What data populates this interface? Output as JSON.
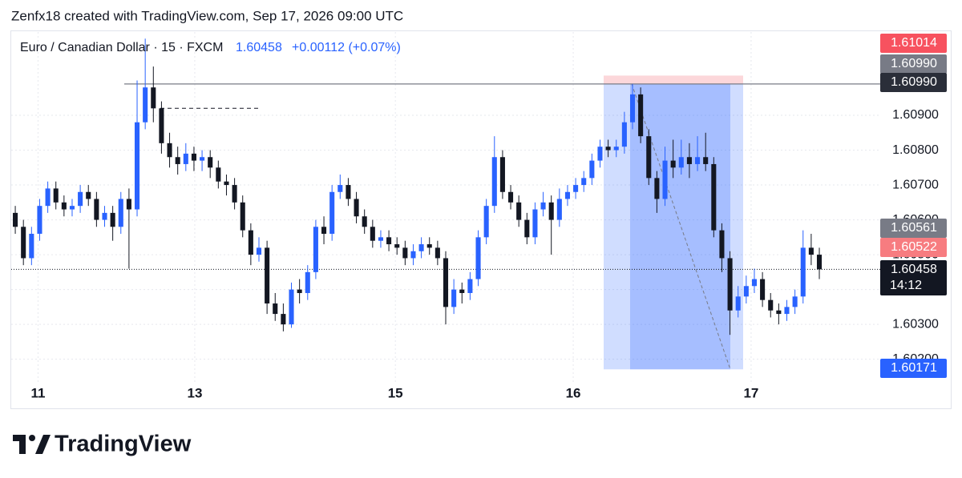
{
  "chart_data": {
    "type": "candlestick",
    "header": "Zenfx18 created with TradingView.com, Sep 17, 2026 09:00 UTC",
    "symbol": "Euro / Canadian Dollar · 15 · FXCM",
    "last_price": "1.60458",
    "change": "+0.00112 (+0.07%)",
    "brand": "TradingView",
    "up_color": "#2962ff",
    "down_color": "#131722",
    "grid": true,
    "xlim": [
      0,
      107
    ],
    "xticks": [
      {
        "value": 3.3,
        "label": "11"
      },
      {
        "value": 22.6,
        "label": "13"
      },
      {
        "value": 47.3,
        "label": "15"
      },
      {
        "value": 69.2,
        "label": "16"
      },
      {
        "value": 91.1,
        "label": "17"
      }
    ],
    "ylim": [
      1.60128,
      1.61139
    ],
    "yticks": [
      {
        "value": 1.602,
        "label": "1.60200"
      },
      {
        "value": 1.603,
        "label": "1.60300"
      },
      {
        "value": 1.604,
        "label": "1.60400"
      },
      {
        "value": 1.605,
        "label": "1.60500"
      },
      {
        "value": 1.606,
        "label": "1.60600"
      },
      {
        "value": 1.607,
        "label": "1.60700"
      },
      {
        "value": 1.608,
        "label": "1.60800"
      },
      {
        "value": 1.609,
        "label": "1.60900"
      }
    ],
    "dashed_line": 1.6092,
    "price_labels": [
      {
        "value": 1.61014,
        "label": "1.61014",
        "color": "#f7525f"
      },
      {
        "value": 1.6099,
        "label": "1.60990",
        "color": "#787b86"
      },
      {
        "value": 1.6099,
        "label": "1.60990",
        "color": "#2a2e39"
      },
      {
        "value": 1.60561,
        "label": "1.60561",
        "color": "#787b86"
      },
      {
        "value": 1.60522,
        "label": "1.60522",
        "color": "#f77c80"
      },
      {
        "value": 1.60458,
        "label": "1.60458",
        "color": "#131722"
      },
      {
        "value": 1.60171,
        "label": "1.60171",
        "color": "#2962ff"
      }
    ],
    "countdown": "14:12",
    "open": [
      1.6062,
      1.6058,
      1.6049,
      1.6056,
      1.6064,
      1.6069,
      1.6065,
      1.6063,
      1.6064,
      1.6068,
      1.6066,
      1.606,
      1.6062,
      1.6058,
      1.6066,
      1.6063,
      1.6088,
      1.6098,
      1.6092,
      1.6082,
      1.6078,
      1.6076,
      1.6079,
      1.6077,
      1.6078,
      1.6075,
      1.6071,
      1.607,
      1.6065,
      1.6057,
      1.605,
      1.6052,
      1.6036,
      1.6033,
      1.603,
      1.604,
      1.6039,
      1.6045,
      1.6058,
      1.6056,
      1.6068,
      1.607,
      1.6066,
      1.6061,
      1.6058,
      1.6054,
      1.6055,
      1.6053,
      1.6052,
      1.6049,
      1.6051,
      1.6053,
      1.6052,
      1.6049,
      1.6035,
      1.604,
      1.6039,
      1.6043,
      1.6055,
      1.6064,
      1.6078,
      1.6068,
      1.6065,
      1.606,
      1.6055,
      1.6063,
      1.6065,
      1.606,
      1.6066,
      1.6068,
      1.607,
      1.6072,
      1.6077,
      1.6081,
      1.608,
      1.6081,
      1.6088,
      1.6096,
      1.6084,
      1.6072,
      1.6066,
      1.6077,
      1.6075,
      1.6078,
      1.6076,
      1.6078,
      1.6076,
      1.6057,
      1.6049,
      1.6034,
      1.6038,
      1.6041,
      1.6043,
      1.6037,
      1.6034,
      1.6033,
      1.6035,
      1.6038,
      1.6052,
      1.605
    ],
    "high": [
      1.6064,
      1.606,
      1.6058,
      1.6066,
      1.6071,
      1.6071,
      1.6067,
      1.6066,
      1.607,
      1.607,
      1.6068,
      1.6064,
      1.6064,
      1.6068,
      1.6069,
      1.61,
      1.6112,
      1.6104,
      1.6094,
      1.6085,
      1.6081,
      1.6082,
      1.6081,
      1.608,
      1.608,
      1.6077,
      1.6073,
      1.6072,
      1.6067,
      1.6059,
      1.6055,
      1.6054,
      1.6039,
      1.6036,
      1.6042,
      1.6043,
      1.6047,
      1.606,
      1.6061,
      1.607,
      1.6073,
      1.6072,
      1.6068,
      1.6063,
      1.606,
      1.6057,
      1.6057,
      1.6055,
      1.6054,
      1.6053,
      1.6055,
      1.6055,
      1.6054,
      1.6051,
      1.6043,
      1.6042,
      1.6045,
      1.6057,
      1.6066,
      1.6084,
      1.608,
      1.607,
      1.6067,
      1.6062,
      1.6065,
      1.6068,
      1.6067,
      1.6069,
      1.607,
      1.6072,
      1.6074,
      1.6079,
      1.6083,
      1.6083,
      1.6083,
      1.6091,
      1.6099,
      1.6098,
      1.6086,
      1.6074,
      1.6081,
      1.6083,
      1.6083,
      1.6082,
      1.6084,
      1.6085,
      1.6078,
      1.6059,
      1.6051,
      1.6041,
      1.6044,
      1.6046,
      1.6045,
      1.6039,
      1.6036,
      1.6037,
      1.604,
      1.6057,
      1.6056,
      1.6052
    ],
    "low": [
      1.6056,
      1.6047,
      1.6047,
      1.6054,
      1.6062,
      1.6063,
      1.6061,
      1.6061,
      1.6062,
      1.6064,
      1.6058,
      1.6058,
      1.6054,
      1.6056,
      1.6046,
      1.6061,
      1.6086,
      1.6088,
      1.6079,
      1.6075,
      1.6073,
      1.6074,
      1.6074,
      1.6074,
      1.6072,
      1.6069,
      1.6067,
      1.6063,
      1.6055,
      1.6047,
      1.6048,
      1.6033,
      1.6031,
      1.6028,
      1.6029,
      1.6036,
      1.6037,
      1.6043,
      1.6053,
      1.6054,
      1.6066,
      1.6064,
      1.6059,
      1.6056,
      1.6052,
      1.6052,
      1.6051,
      1.605,
      1.6047,
      1.6047,
      1.6049,
      1.605,
      1.6047,
      1.603,
      1.6033,
      1.6036,
      1.6037,
      1.6041,
      1.6053,
      1.6062,
      1.6066,
      1.6063,
      1.6058,
      1.6053,
      1.6053,
      1.6061,
      1.605,
      1.6058,
      1.6064,
      1.6066,
      1.6068,
      1.607,
      1.6075,
      1.6078,
      1.6078,
      1.6079,
      1.6086,
      1.6082,
      1.607,
      1.6062,
      1.6064,
      1.6072,
      1.6073,
      1.6072,
      1.6074,
      1.6074,
      1.6055,
      1.6045,
      1.6027,
      1.6032,
      1.6036,
      1.6039,
      1.6035,
      1.6032,
      1.603,
      1.6031,
      1.6033,
      1.6036,
      1.6047,
      1.6043
    ],
    "close": [
      1.6058,
      1.6049,
      1.6056,
      1.6064,
      1.6069,
      1.6065,
      1.6063,
      1.6064,
      1.6068,
      1.6066,
      1.606,
      1.6062,
      1.6058,
      1.6066,
      1.6063,
      1.6088,
      1.6098,
      1.6092,
      1.6082,
      1.6078,
      1.6076,
      1.6079,
      1.6077,
      1.6078,
      1.6075,
      1.6071,
      1.607,
      1.6065,
      1.6057,
      1.605,
      1.6052,
      1.6036,
      1.6033,
      1.603,
      1.604,
      1.6039,
      1.6045,
      1.6058,
      1.6056,
      1.6068,
      1.607,
      1.6066,
      1.6061,
      1.6058,
      1.6054,
      1.6055,
      1.6053,
      1.6052,
      1.6049,
      1.6051,
      1.6053,
      1.6052,
      1.6049,
      1.6035,
      1.604,
      1.6039,
      1.6043,
      1.6055,
      1.6064,
      1.6078,
      1.6068,
      1.6065,
      1.606,
      1.6055,
      1.6063,
      1.6065,
      1.606,
      1.6066,
      1.6068,
      1.607,
      1.6072,
      1.6077,
      1.6081,
      1.608,
      1.6081,
      1.6088,
      1.6096,
      1.6084,
      1.6072,
      1.6066,
      1.6077,
      1.6075,
      1.6078,
      1.6076,
      1.6078,
      1.6076,
      1.6057,
      1.6049,
      1.6034,
      1.6038,
      1.6041,
      1.6043,
      1.6037,
      1.6034,
      1.6033,
      1.6035,
      1.6038,
      1.6052,
      1.605,
      1.60458
    ]
  }
}
